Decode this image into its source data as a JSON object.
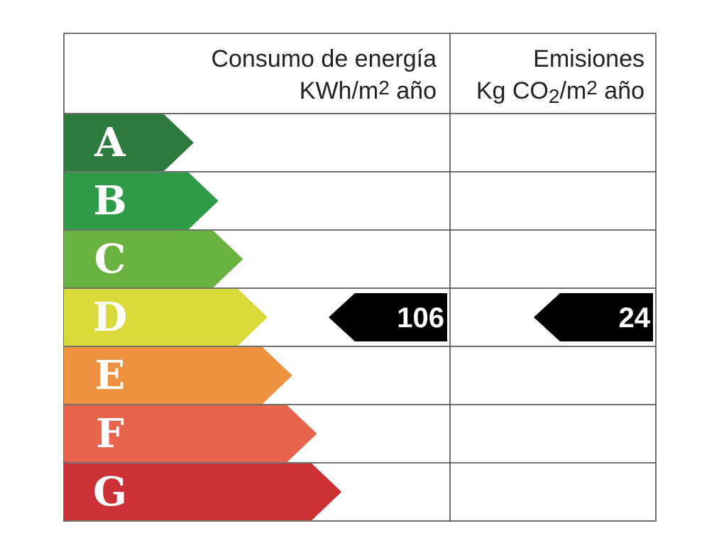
{
  "header": {
    "energy": {
      "line1": "Consumo de energía",
      "line2": [
        "KWh/m",
        "2",
        " año"
      ]
    },
    "emissions": {
      "line1": "Emisiones",
      "line2": [
        "Kg CO",
        "2",
        "/m",
        "2",
        " año"
      ]
    }
  },
  "rows": [
    {
      "letter": "A",
      "color": "#2e7a3e"
    },
    {
      "letter": "B",
      "color": "#2f9a48"
    },
    {
      "letter": "C",
      "color": "#6ab23f"
    },
    {
      "letter": "D",
      "color": "#d9d93a",
      "energy": 106,
      "emissions": 24
    },
    {
      "letter": "E",
      "color": "#ee9240"
    },
    {
      "letter": "F",
      "color": "#e8634b"
    },
    {
      "letter": "G",
      "color": "#cc3235"
    }
  ]
}
